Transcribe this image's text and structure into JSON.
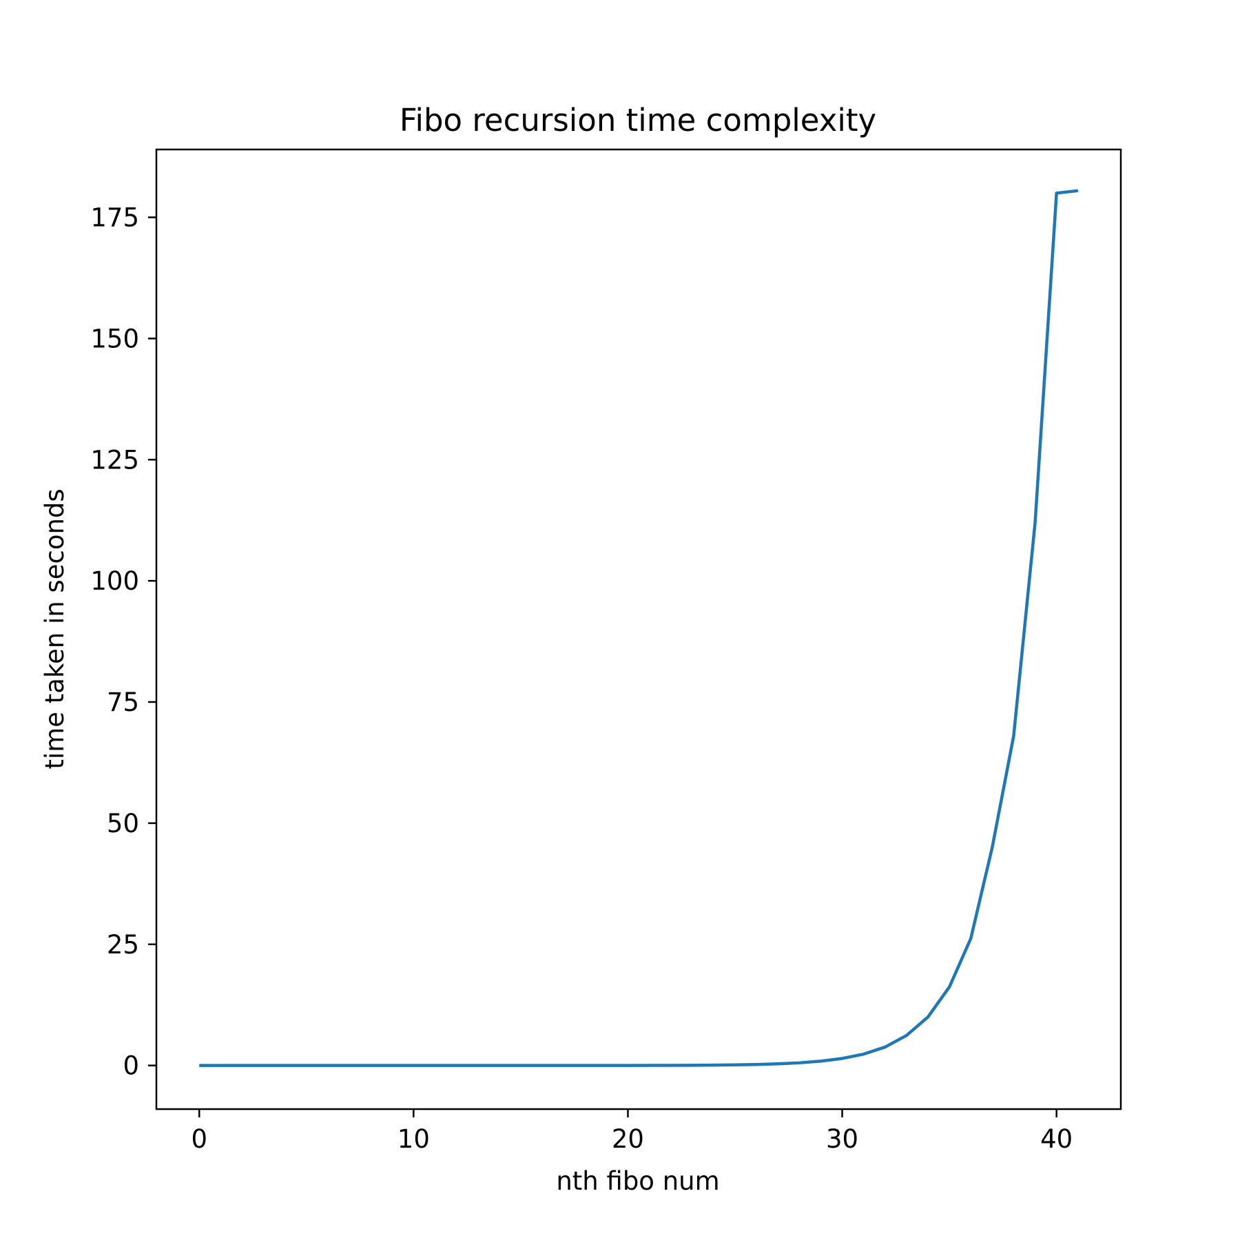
{
  "chart_data": {
    "type": "line",
    "title": "Fibo recursion time complexity",
    "xlabel": "nth fibo num",
    "ylabel": "time taken in seconds",
    "xlim": [
      -2,
      43
    ],
    "ylim": [
      -9,
      189
    ],
    "xticks": [
      0,
      10,
      20,
      30,
      40
    ],
    "yticks": [
      0,
      25,
      50,
      75,
      100,
      125,
      150,
      175
    ],
    "grid": false,
    "series": [
      {
        "color": "#1f77b4",
        "x": [
          0,
          1,
          2,
          3,
          4,
          5,
          6,
          7,
          8,
          9,
          10,
          11,
          12,
          13,
          14,
          15,
          16,
          17,
          18,
          19,
          20,
          21,
          22,
          23,
          24,
          25,
          26,
          27,
          28,
          29,
          30,
          31,
          32,
          33,
          34,
          35,
          36,
          37,
          38,
          39,
          40,
          41
        ],
        "y": [
          0,
          0,
          0,
          0,
          0,
          0,
          0,
          0,
          0,
          0,
          0,
          0,
          0,
          0,
          0,
          0,
          0,
          0,
          0,
          0,
          0.01,
          0.02,
          0.03,
          0.05,
          0.08,
          0.13,
          0.21,
          0.34,
          0.55,
          0.9,
          1.45,
          2.35,
          3.8,
          6.2,
          10.0,
          16.2,
          26.2,
          45.0,
          68.0,
          112.0,
          180.0,
          180.5
        ]
      }
    ]
  }
}
